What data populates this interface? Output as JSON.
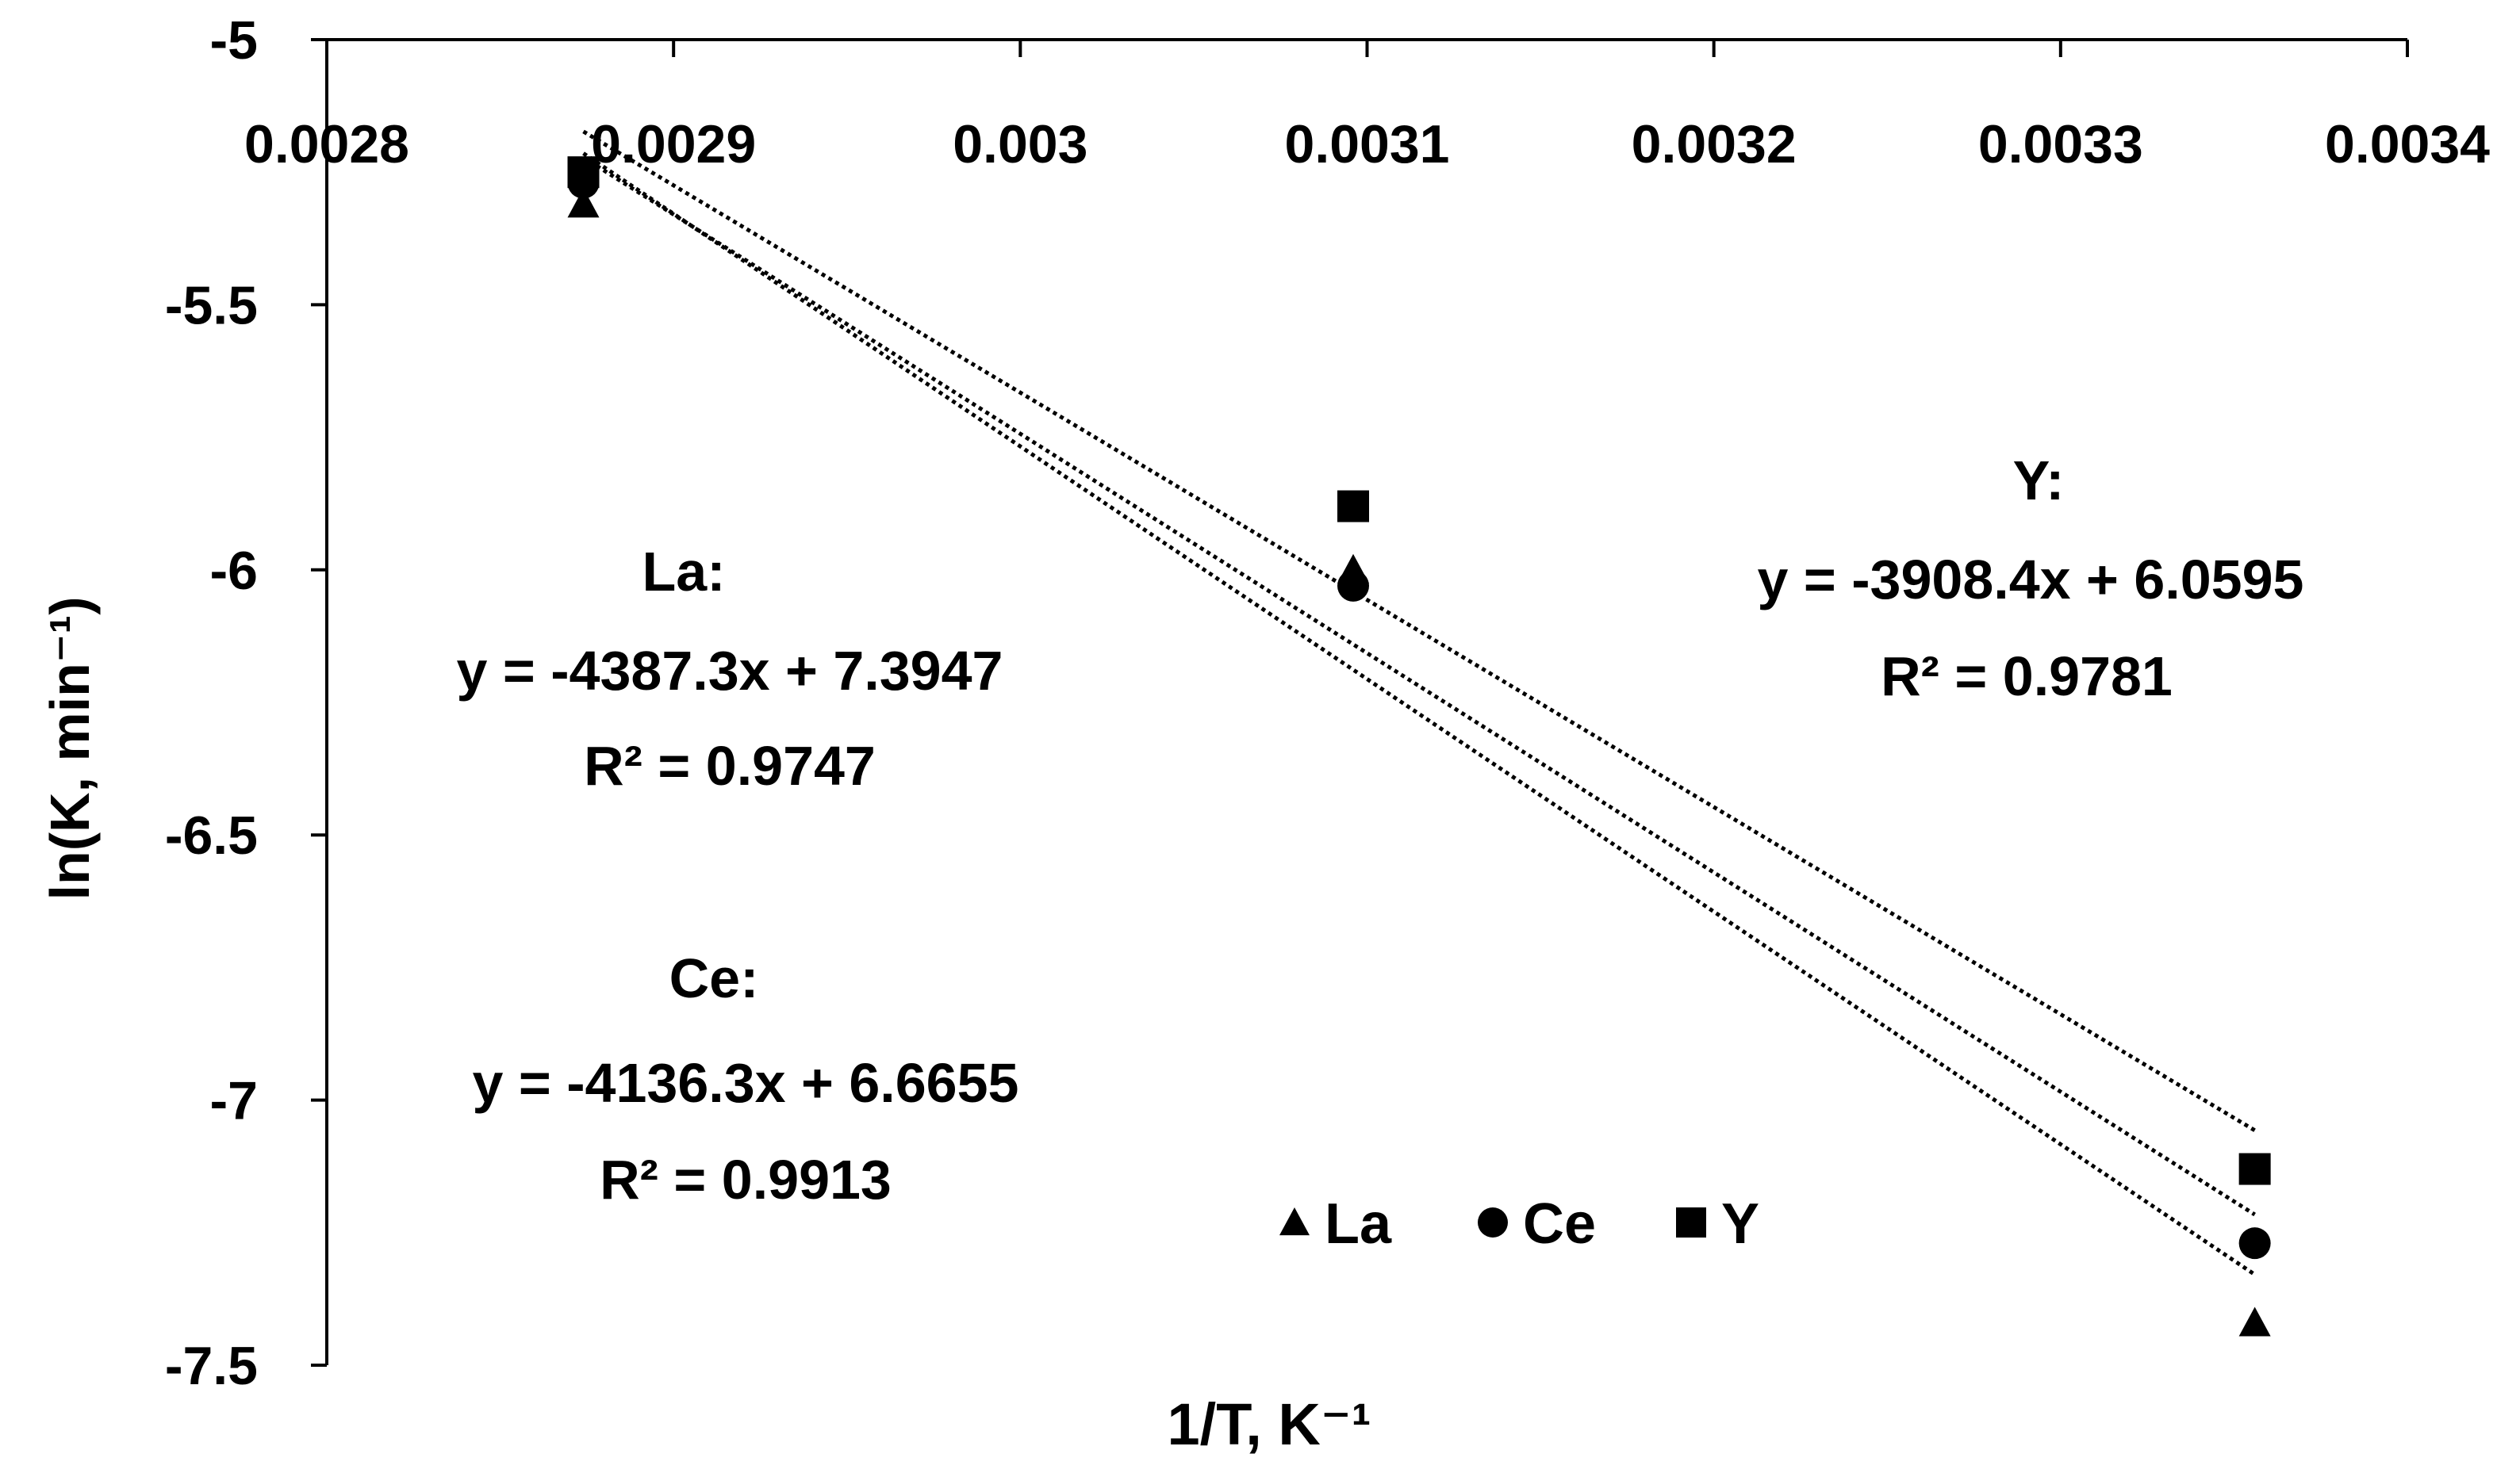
{
  "chart_data": {
    "type": "scatter",
    "xlabel": "1/T, K⁻¹",
    "ylabel": "ln(K, min⁻¹)",
    "xlim": [
      0.0028,
      0.0034
    ],
    "ylim": [
      -7.5,
      -5
    ],
    "x_ticks": [
      "0.0028",
      "0.0029",
      "0.003",
      "0.0031",
      "0.0032",
      "0.0033",
      "0.0034"
    ],
    "y_ticks": [
      "-5",
      "-5.5",
      "-6",
      "-6.5",
      "-7",
      "-7.5"
    ],
    "x_axis_position": "top",
    "grid": false,
    "legend_position": "bottom-right",
    "series": [
      {
        "name": "La",
        "marker": "triangle",
        "color": "#000000",
        "x": [
          0.002874,
          0.003096,
          0.003356
        ],
        "y": [
          -5.31,
          -6.0,
          -7.42
        ],
        "trendline": {
          "slope": -4387.3,
          "intercept": 7.3947
        },
        "equation_label": {
          "title": "La:",
          "equation": "y = -4387.3x + 7.3947",
          "r2": "R² = 0.9747"
        }
      },
      {
        "name": "Ce",
        "marker": "circle",
        "color": "#000000",
        "x": [
          0.002874,
          0.003096,
          0.003356
        ],
        "y": [
          -5.27,
          -6.03,
          -7.27
        ],
        "trendline": {
          "slope": -4136.3,
          "intercept": 6.6655
        },
        "equation_label": {
          "title": "Ce:",
          "equation": "y = -4136.3x + 6.6655",
          "r2": "R² = 0.9913"
        }
      },
      {
        "name": "Y",
        "marker": "square",
        "color": "#000000",
        "x": [
          0.002874,
          0.003096,
          0.003356
        ],
        "y": [
          -5.25,
          -5.88,
          -7.13
        ],
        "trendline": {
          "slope": -3908.4,
          "intercept": 6.0595
        },
        "equation_label": {
          "title": "Y:",
          "equation": "y = -3908.4x + 6.0595",
          "r2": "R² = 0.9781"
        }
      }
    ]
  }
}
